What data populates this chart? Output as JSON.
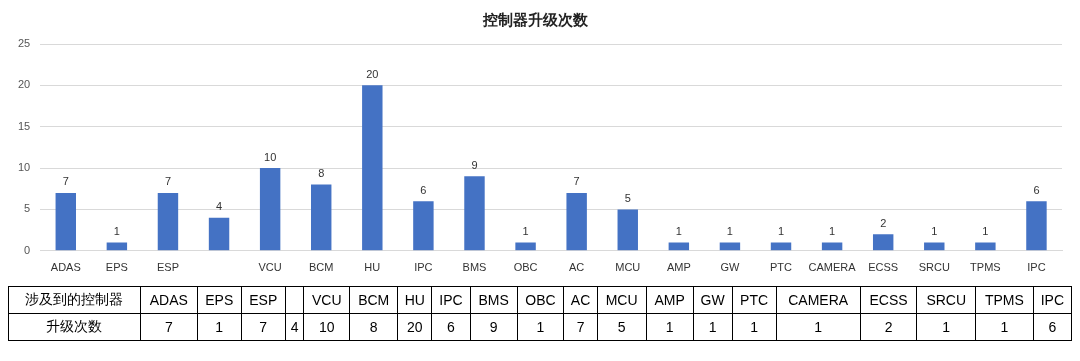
{
  "chart_data": [
    {
      "type": "bar",
      "title": "控制器升级次数",
      "categories": [
        "ADAS",
        "EPS",
        "ESP",
        null,
        "VCU",
        "BCM",
        "HU",
        "IPC",
        "BMS",
        "OBC",
        "AC",
        "MCU",
        "AMP",
        "GW",
        "PTC",
        "CAMERA",
        "ECSS",
        "SRCU",
        "TPMS",
        "IPC"
      ],
      "values": [
        7,
        1,
        7,
        4,
        10,
        8,
        20,
        6,
        9,
        1,
        7,
        5,
        1,
        1,
        1,
        1,
        2,
        1,
        1,
        6
      ],
      "color": "#4472c4",
      "ylim": [
        0,
        25
      ],
      "yticks": [
        0,
        5,
        10,
        15,
        20,
        25
      ],
      "grid": "y",
      "legend": false,
      "data_labels": true
    },
    {
      "type": "other",
      "categories": [
        "ADAS",
        "EPS",
        "ESP",
        null,
        "VCU",
        "BCM",
        "HU",
        "IPC",
        "BMS",
        "OBC",
        "AC",
        "MCU",
        "AMP",
        "GW",
        "PTC",
        "CAMERA",
        "ECSS",
        "SRCU",
        "TPMS",
        "IPC"
      ],
      "annotations": [
        "涉及到的控制器",
        "升级次数",
        "7",
        "1",
        "7",
        "4",
        "10",
        "8",
        "20",
        "6",
        "9",
        "1",
        "7",
        "5",
        "1",
        "1",
        "1",
        "1",
        "2",
        "1",
        "1",
        "6"
      ]
    }
  ]
}
